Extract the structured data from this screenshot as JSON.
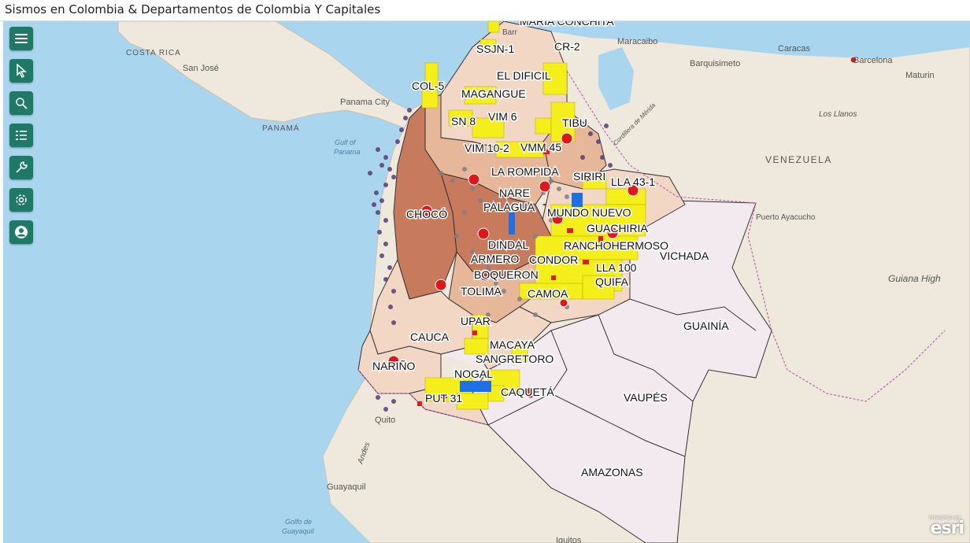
{
  "header": {
    "title": "Sismos en Colombia & Departamentos de Colombia Y Capitales"
  },
  "toolbar": {
    "buttons": [
      {
        "name": "menu-button",
        "icon": "hamburger-icon"
      },
      {
        "name": "select-button",
        "icon": "pointer-icon"
      },
      {
        "name": "search-button",
        "icon": "search-icon"
      },
      {
        "name": "layers-button",
        "icon": "list-icon"
      },
      {
        "name": "tools-button",
        "icon": "wrench-icon"
      },
      {
        "name": "settings-button",
        "icon": "gear-icon"
      },
      {
        "name": "account-button",
        "icon": "user-icon"
      }
    ],
    "accent": "#1e7a66"
  },
  "basemap_labels": {
    "costa_rica": "COSTA RICA",
    "san_jose": "San José",
    "panama": "PANAMÁ",
    "panama_city": "Panama City",
    "gulf_of": "Gulf of",
    "panama_gulf": "Panama",
    "maracaibo": "Maracaibo",
    "barquisimeto": "Barquisimeto",
    "caracas": "Caracas",
    "barcelona": "Barcelona",
    "maturin": "Maturin",
    "los_llanos": "Los Llanos",
    "venezuela": "VENEZUELA",
    "cordillera": "Cordillera de Mérida",
    "puerto_ayacucho": "Puerto Ayacucho",
    "guiana_high": "Guiana High",
    "quito": "Quito",
    "guayaquil": "Guayaquil",
    "golfo_de": "Golfo de",
    "guayaquil_gulf": "Guayaquil",
    "andes": "Andes",
    "iquitos": "Iquitos",
    "barr": "Barr"
  },
  "map_labels": {
    "maria_conchita": "MARIA CONCHITA",
    "ssjn1": "SSJN-1",
    "cr2": "CR-2",
    "el_dificil": "EL DIFICIL",
    "col5": "COL-5",
    "magangue": "MAGANGUE",
    "sn8": "SN 8",
    "vim6": "VIM 6",
    "tibu": "TIBU",
    "vim10": "VIM 10-2",
    "vmm45": "VMM 45",
    "la_rompida": "LA ROMPIDA",
    "siriri": "SIRIRI",
    "lla43": "LLA 43-1",
    "nare": "NARE",
    "palagua": "PALAGUA",
    "mundo_nuevo": "MUNDO NUEVO",
    "choco": "CHOCÓ",
    "guachiria": "GUACHIRIA",
    "dindal": "DINDAL",
    "ranchohermoso": "RANCHOHERMOSO",
    "vichada": "VICHADA",
    "armero": "ARMERO",
    "condor": "CONDOR",
    "lla100": "LLA 100",
    "boqueron": "BOQUERON",
    "quifa": "QUIFA",
    "tolima": "TOLIMA",
    "camoa": "CAMOA",
    "guainia": "GUAINÍA",
    "upar": "UPAR",
    "cauca": "CAUCA",
    "macaya": "MACAYA",
    "sangretoro": "SANGRETORO",
    "narino": "NARIÑO",
    "nogal": "NOGAL",
    "caqueta": "CAQUETÁ",
    "put31": "PUT 31",
    "vaupes": "VAUPÉS",
    "amazonas": "AMAZONAS"
  },
  "legend_colors": {
    "sea": "#a9d6ee",
    "land": "#eee9dc",
    "departments_dark": "#c87a5d",
    "departments_mid": "#e7b79a",
    "departments_light": "#f3d7c5",
    "departments_east": "#f3eaf0",
    "blocks": "#f4ee1b",
    "wells": "#e21b1b",
    "earthquakes": "#5a3a78"
  },
  "attribution": {
    "logo": "esri",
    "powered": "POWERED BY"
  }
}
